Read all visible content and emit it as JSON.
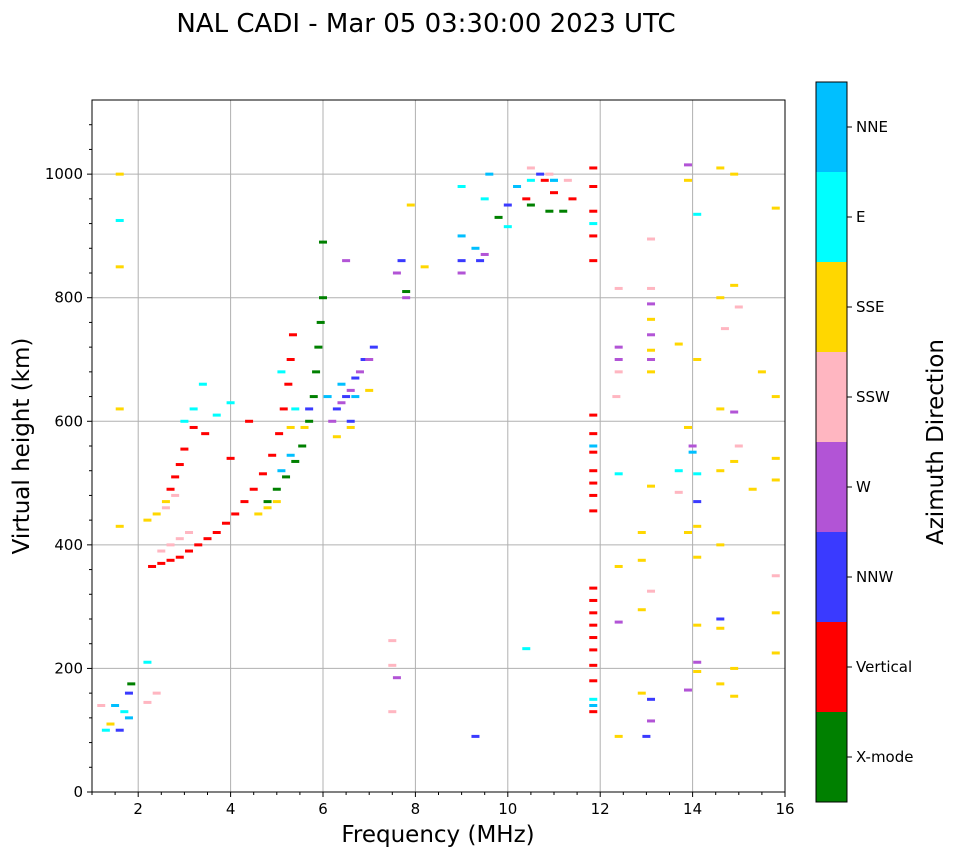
{
  "chart_data": {
    "type": "scatter",
    "title": "NAL CADI - Mar 05 03:30:00 2023 UTC",
    "xlabel": "Frequency (MHz)",
    "ylabel": "Virtual height (km)",
    "xlim": [
      1,
      16
    ],
    "ylim": [
      0,
      1120
    ],
    "xticks": [
      2,
      4,
      6,
      8,
      10,
      12,
      14,
      16
    ],
    "yticks": [
      0,
      200,
      400,
      600,
      800,
      1000
    ],
    "grid": true,
    "colorbar": {
      "label": "Azimuth Direction",
      "categories": [
        {
          "name": "X-mode",
          "color": "#008000"
        },
        {
          "name": "Vertical",
          "color": "#ff0000"
        },
        {
          "name": "NNW",
          "color": "#3a3aff"
        },
        {
          "name": "W",
          "color": "#b254d6"
        },
        {
          "name": "SSW",
          "color": "#ffb6c1"
        },
        {
          "name": "SSE",
          "color": "#ffd700"
        },
        {
          "name": "E",
          "color": "#00ffff"
        },
        {
          "name": "NNE",
          "color": "#00bfff"
        }
      ]
    },
    "series": [
      {
        "name": "Vertical",
        "points": [
          [
            2.3,
            365
          ],
          [
            2.5,
            370
          ],
          [
            2.7,
            375
          ],
          [
            2.9,
            380
          ],
          [
            3.1,
            390
          ],
          [
            3.3,
            400
          ],
          [
            3.5,
            410
          ],
          [
            3.7,
            420
          ],
          [
            3.9,
            435
          ],
          [
            4.1,
            450
          ],
          [
            4.3,
            470
          ],
          [
            4.5,
            490
          ],
          [
            4.7,
            515
          ],
          [
            4.9,
            545
          ],
          [
            5.05,
            580
          ],
          [
            5.15,
            620
          ],
          [
            5.25,
            660
          ],
          [
            5.3,
            700
          ],
          [
            5.35,
            740
          ],
          [
            2.7,
            490
          ],
          [
            2.8,
            510
          ],
          [
            2.9,
            530
          ],
          [
            3.0,
            555
          ],
          [
            3.2,
            590
          ],
          [
            3.45,
            580
          ],
          [
            4.0,
            540
          ],
          [
            4.4,
            600
          ],
          [
            11.85,
            1010
          ],
          [
            11.85,
            980
          ],
          [
            11.85,
            940
          ],
          [
            11.85,
            900
          ],
          [
            11.85,
            860
          ],
          [
            11.85,
            610
          ],
          [
            11.85,
            580
          ],
          [
            11.85,
            550
          ],
          [
            11.85,
            520
          ],
          [
            11.85,
            500
          ],
          [
            11.85,
            480
          ],
          [
            11.85,
            455
          ],
          [
            11.85,
            330
          ],
          [
            11.85,
            310
          ],
          [
            11.85,
            290
          ],
          [
            11.85,
            270
          ],
          [
            11.85,
            250
          ],
          [
            11.85,
            230
          ],
          [
            11.85,
            205
          ],
          [
            11.85,
            180
          ],
          [
            11.85,
            130
          ],
          [
            10.4,
            960
          ],
          [
            10.8,
            990
          ],
          [
            11.0,
            970
          ],
          [
            11.4,
            960
          ]
        ]
      },
      {
        "name": "X-mode",
        "points": [
          [
            4.8,
            470
          ],
          [
            5.0,
            490
          ],
          [
            5.2,
            510
          ],
          [
            5.4,
            535
          ],
          [
            5.55,
            560
          ],
          [
            5.7,
            600
          ],
          [
            5.8,
            640
          ],
          [
            5.85,
            680
          ],
          [
            5.9,
            720
          ],
          [
            5.95,
            760
          ],
          [
            6.0,
            800
          ],
          [
            6.0,
            890
          ],
          [
            7.8,
            810
          ],
          [
            9.8,
            930
          ],
          [
            10.5,
            950
          ],
          [
            10.9,
            940
          ],
          [
            11.2,
            940
          ],
          [
            1.85,
            175
          ]
        ]
      },
      {
        "name": "NNW",
        "points": [
          [
            6.3,
            620
          ],
          [
            6.5,
            640
          ],
          [
            6.7,
            670
          ],
          [
            6.9,
            700
          ],
          [
            7.1,
            720
          ],
          [
            6.6,
            600
          ],
          [
            5.7,
            620
          ],
          [
            7.7,
            860
          ],
          [
            9.0,
            860
          ],
          [
            9.4,
            860
          ],
          [
            10.0,
            950
          ],
          [
            10.7,
            1000
          ],
          [
            1.8,
            160
          ],
          [
            1.6,
            100
          ],
          [
            9.3,
            90
          ],
          [
            13.0,
            90
          ],
          [
            14.1,
            470
          ],
          [
            14.6,
            280
          ],
          [
            13.1,
            150
          ]
        ]
      },
      {
        "name": "W",
        "points": [
          [
            6.2,
            600
          ],
          [
            6.4,
            630
          ],
          [
            6.6,
            650
          ],
          [
            6.8,
            680
          ],
          [
            7.0,
            700
          ],
          [
            7.8,
            800
          ],
          [
            7.6,
            840
          ],
          [
            9.0,
            840
          ],
          [
            9.5,
            870
          ],
          [
            12.4,
            720
          ],
          [
            12.4,
            700
          ],
          [
            13.1,
            790
          ],
          [
            13.1,
            740
          ],
          [
            13.1,
            700
          ],
          [
            14.9,
            615
          ],
          [
            14.0,
            560
          ],
          [
            13.9,
            165
          ],
          [
            14.1,
            210
          ],
          [
            7.6,
            185
          ],
          [
            12.4,
            275
          ],
          [
            13.1,
            115
          ],
          [
            13.9,
            1015
          ],
          [
            6.5,
            860
          ]
        ]
      },
      {
        "name": "SSW",
        "points": [
          [
            2.5,
            390
          ],
          [
            2.7,
            400
          ],
          [
            2.9,
            410
          ],
          [
            3.1,
            420
          ],
          [
            2.6,
            460
          ],
          [
            2.8,
            480
          ],
          [
            2.2,
            145
          ],
          [
            2.4,
            160
          ],
          [
            10.5,
            1010
          ],
          [
            10.9,
            1000
          ],
          [
            11.3,
            990
          ],
          [
            12.4,
            815
          ],
          [
            12.4,
            680
          ],
          [
            12.35,
            640
          ],
          [
            13.1,
            815
          ],
          [
            13.1,
            895
          ],
          [
            13.1,
            325
          ],
          [
            14.7,
            750
          ],
          [
            15.0,
            785
          ],
          [
            15.0,
            560
          ],
          [
            15.8,
            350
          ],
          [
            13.7,
            485
          ],
          [
            7.5,
            245
          ],
          [
            7.5,
            205
          ],
          [
            7.5,
            130
          ],
          [
            1.2,
            140
          ]
        ]
      },
      {
        "name": "SSE",
        "points": [
          [
            2.2,
            440
          ],
          [
            2.4,
            450
          ],
          [
            2.6,
            470
          ],
          [
            4.6,
            450
          ],
          [
            4.8,
            460
          ],
          [
            5.0,
            470
          ],
          [
            5.3,
            590
          ],
          [
            5.6,
            590
          ],
          [
            6.3,
            575
          ],
          [
            6.6,
            590
          ],
          [
            7.0,
            650
          ],
          [
            7.9,
            950
          ],
          [
            8.2,
            850
          ],
          [
            12.4,
            365
          ],
          [
            12.4,
            90
          ],
          [
            12.9,
            420
          ],
          [
            12.9,
            375
          ],
          [
            12.9,
            295
          ],
          [
            12.9,
            160
          ],
          [
            13.1,
            680
          ],
          [
            13.1,
            765
          ],
          [
            13.1,
            715
          ],
          [
            13.1,
            495
          ],
          [
            13.9,
            990
          ],
          [
            13.9,
            590
          ],
          [
            14.1,
            700
          ],
          [
            14.1,
            430
          ],
          [
            14.1,
            380
          ],
          [
            14.1,
            270
          ],
          [
            14.1,
            195
          ],
          [
            14.6,
            1010
          ],
          [
            14.6,
            800
          ],
          [
            14.6,
            620
          ],
          [
            14.6,
            520
          ],
          [
            14.6,
            400
          ],
          [
            14.6,
            265
          ],
          [
            14.6,
            175
          ],
          [
            14.9,
            1000
          ],
          [
            14.9,
            820
          ],
          [
            14.9,
            535
          ],
          [
            14.9,
            200
          ],
          [
            14.9,
            155
          ],
          [
            15.3,
            490
          ],
          [
            15.5,
            680
          ],
          [
            15.8,
            945
          ],
          [
            15.8,
            640
          ],
          [
            15.8,
            540
          ],
          [
            15.8,
            505
          ],
          [
            15.8,
            290
          ],
          [
            15.8,
            225
          ],
          [
            1.6,
            1000
          ],
          [
            1.6,
            850
          ],
          [
            1.6,
            620
          ],
          [
            1.6,
            430
          ],
          [
            1.4,
            110
          ],
          [
            13.7,
            725
          ],
          [
            13.9,
            420
          ]
        ]
      },
      {
        "name": "E",
        "points": [
          [
            3.0,
            600
          ],
          [
            3.2,
            620
          ],
          [
            3.4,
            660
          ],
          [
            3.7,
            610
          ],
          [
            4.0,
            630
          ],
          [
            5.1,
            680
          ],
          [
            5.4,
            620
          ],
          [
            9.0,
            980
          ],
          [
            9.5,
            960
          ],
          [
            10.0,
            915
          ],
          [
            10.5,
            990
          ],
          [
            11.0,
            990
          ],
          [
            11.85,
            920
          ],
          [
            12.4,
            515
          ],
          [
            13.7,
            520
          ],
          [
            14.1,
            935
          ],
          [
            14.1,
            515
          ],
          [
            10.4,
            232
          ],
          [
            11.85,
            150
          ],
          [
            1.6,
            925
          ],
          [
            2.2,
            210
          ],
          [
            1.3,
            100
          ],
          [
            1.7,
            130
          ]
        ]
      },
      {
        "name": "NNE",
        "points": [
          [
            6.1,
            640
          ],
          [
            6.4,
            660
          ],
          [
            6.7,
            640
          ],
          [
            9.0,
            900
          ],
          [
            9.3,
            880
          ],
          [
            9.6,
            1000
          ],
          [
            10.2,
            980
          ],
          [
            11.0,
            990
          ],
          [
            11.85,
            560
          ],
          [
            11.85,
            140
          ],
          [
            14.0,
            550
          ],
          [
            1.5,
            140
          ],
          [
            1.8,
            120
          ],
          [
            5.1,
            520
          ],
          [
            5.3,
            545
          ]
        ]
      }
    ]
  }
}
